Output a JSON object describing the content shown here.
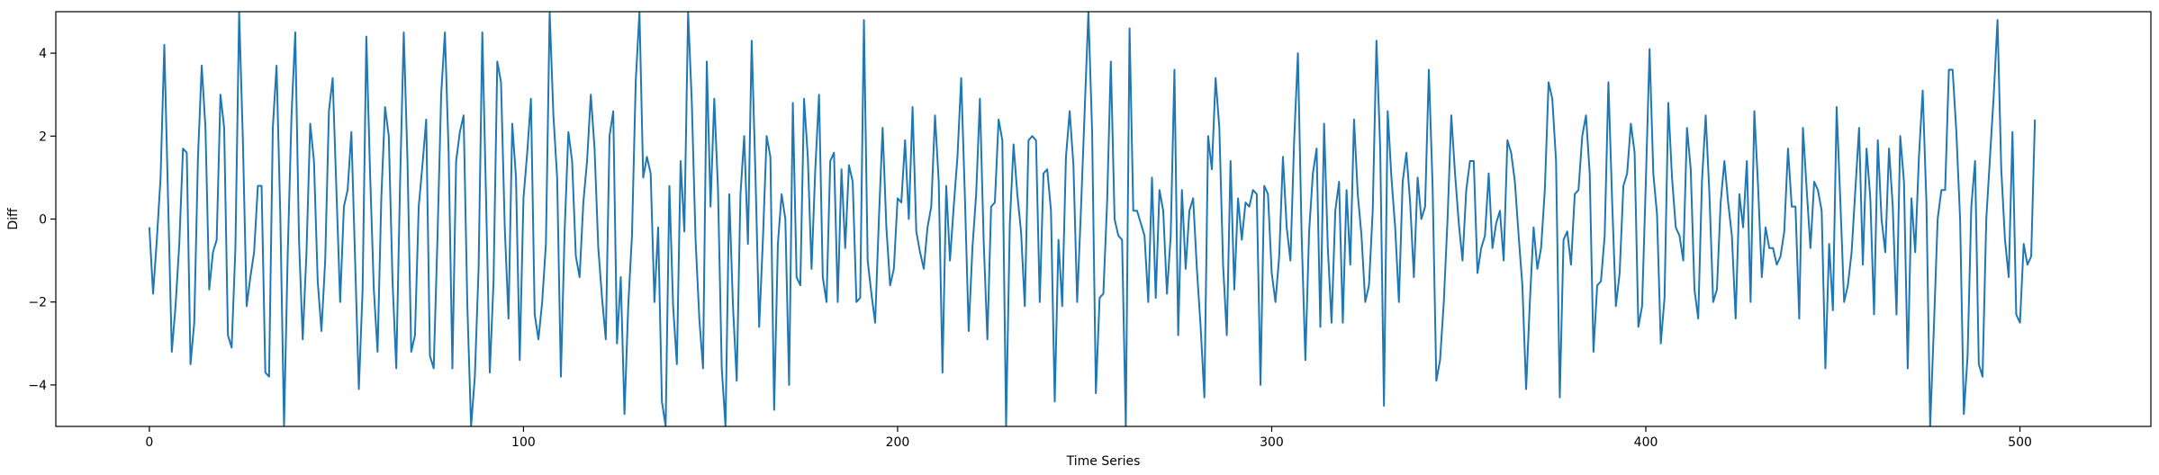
{
  "chart_data": {
    "type": "line",
    "xlabel": "Time Series",
    "ylabel": "Diff",
    "xlim": [
      -25,
      535
    ],
    "ylim": [
      -5,
      5
    ],
    "x_ticks": [
      0,
      100,
      200,
      300,
      400,
      500
    ],
    "y_ticks": [
      -4,
      -2,
      0,
      2,
      4
    ],
    "x_tick_labels": [
      "0",
      "100",
      "200",
      "300",
      "400",
      "500"
    ],
    "y_tick_labels": [
      "−4",
      "−2",
      "0",
      "2",
      "4"
    ],
    "grid": false,
    "legend": "none",
    "series": [
      {
        "color": "#1f77b4",
        "x_start": 0,
        "x_step": 1,
        "values": [
          -0.2,
          -1.8,
          -0.5,
          1.0,
          4.2,
          0.5,
          -3.2,
          -2.1,
          -0.6,
          1.7,
          1.6,
          -3.5,
          -2.5,
          1.5,
          3.7,
          2.2,
          -1.7,
          -0.8,
          -0.5,
          3.0,
          2.2,
          -2.8,
          -3.1,
          -0.7,
          5.0,
          1.9,
          -2.1,
          -1.4,
          -0.8,
          0.8,
          0.8,
          -3.7,
          -3.8,
          2.2,
          3.7,
          0.1,
          -5.0,
          -0.8,
          2.5,
          4.5,
          -0.5,
          -2.9,
          -0.8,
          2.3,
          1.4,
          -1.5,
          -2.7,
          -1.0,
          2.6,
          3.4,
          0.7,
          -2.0,
          0.3,
          0.7,
          2.1,
          -1.0,
          -4.1,
          -1.7,
          4.4,
          1.1,
          -1.7,
          -3.2,
          0.5,
          2.7,
          2.0,
          -1.5,
          -3.6,
          0.8,
          4.5,
          1.4,
          -3.2,
          -2.8,
          0.3,
          1.3,
          2.4,
          -3.3,
          -3.6,
          -0.5,
          3.0,
          4.5,
          1.6,
          -3.6,
          1.4,
          2.1,
          2.5,
          -2.1,
          -5.0,
          -3.8,
          -1.2,
          4.5,
          0.5,
          -3.7,
          -1.5,
          3.8,
          3.3,
          -0.2,
          -2.4,
          2.3,
          1.0,
          -3.4,
          0.5,
          1.6,
          2.9,
          -2.3,
          -2.9,
          -2.0,
          -0.6,
          5.0,
          2.5,
          1.0,
          -3.8,
          -0.3,
          2.1,
          1.4,
          -0.9,
          -1.4,
          0.4,
          1.4,
          3.0,
          1.7,
          -0.7,
          -1.9,
          -2.9,
          2.0,
          2.6,
          -3.0,
          -1.4,
          -4.7,
          -2.1,
          -0.4,
          3.3,
          5.0,
          1.0,
          1.5,
          1.1,
          -2.0,
          -0.2,
          -4.4,
          -5.0,
          0.8,
          -2.1,
          -3.5,
          1.4,
          -0.3,
          5.0,
          2.8,
          -0.5,
          -2.4,
          -3.6,
          3.8,
          0.3,
          2.9,
          0.7,
          -3.6,
          -5.0,
          0.6,
          -2.1,
          -3.9,
          0.6,
          2.0,
          -0.6,
          4.3,
          1.1,
          -2.6,
          -0.5,
          2.0,
          1.5,
          -4.6,
          -0.6,
          0.6,
          0.0,
          -4.0,
          2.8,
          -1.4,
          -1.6,
          2.9,
          1.5,
          -1.2,
          1.2,
          3.0,
          -1.4,
          -2.0,
          1.4,
          1.6,
          -2.0,
          1.2,
          -0.7,
          1.3,
          0.9,
          -2.0,
          -1.9,
          4.8,
          -1.0,
          -1.8,
          -2.5,
          0.0,
          2.2,
          -0.2,
          -1.6,
          -1.2,
          0.5,
          0.4,
          1.9,
          0.0,
          2.7,
          -0.3,
          -0.8,
          -1.2,
          -0.2,
          0.3,
          2.5,
          0.9,
          -3.7,
          0.8,
          -1.0,
          0.3,
          1.5,
          3.4,
          0.5,
          -2.7,
          -0.7,
          0.6,
          2.9,
          -0.5,
          -2.9,
          0.3,
          0.4,
          2.4,
          1.9,
          -5.0,
          -0.1,
          1.8,
          0.6,
          -0.3,
          -2.1,
          1.9,
          2.0,
          1.9,
          -2.0,
          1.1,
          1.2,
          0.2,
          -4.4,
          -0.5,
          -2.1,
          1.5,
          2.6,
          1.3,
          -2.0,
          0.2,
          2.6,
          5.0,
          2.1,
          -4.2,
          -1.9,
          -1.8,
          0.4,
          3.8,
          0.0,
          -0.4,
          -0.5,
          -5.0,
          4.6,
          0.2,
          0.2,
          -0.1,
          -0.4,
          -2.0,
          1.0,
          -1.9,
          0.7,
          0.2,
          -1.8,
          -0.4,
          3.6,
          -2.8,
          0.7,
          -1.2,
          0.2,
          0.5,
          -1.2,
          -2.6,
          -4.3,
          2.0,
          1.2,
          3.4,
          2.2,
          -1.1,
          -2.8,
          1.4,
          -1.7,
          0.5,
          -0.5,
          0.4,
          0.3,
          0.7,
          0.6,
          -4.0,
          0.8,
          0.6,
          -1.3,
          -2.0,
          -0.9,
          1.5,
          -0.2,
          -1.0,
          1.9,
          4.0,
          -0.4,
          -3.4,
          -0.3,
          1.1,
          1.7,
          -2.6,
          2.3,
          -0.7,
          -2.5,
          0.2,
          0.9,
          -2.5,
          0.7,
          -1.1,
          2.4,
          0.6,
          -0.4,
          -2.0,
          -1.6,
          0.2,
          4.3,
          1.7,
          -4.5,
          2.6,
          1.0,
          -0.2,
          -2.0,
          0.9,
          1.6,
          0.4,
          -1.4,
          1.0,
          0.0,
          0.3,
          3.6,
          0.8,
          -3.9,
          -3.4,
          -2.0,
          0.0,
          2.5,
          1.1,
          -0.1,
          -1.0,
          0.7,
          1.4,
          1.4,
          -1.3,
          -0.7,
          -0.4,
          1.1,
          -0.7,
          -0.1,
          0.2,
          -1.0,
          1.9,
          1.6,
          0.9,
          -0.4,
          -1.6,
          -4.1,
          -2.0,
          -0.2,
          -1.2,
          -0.7,
          0.7,
          3.3,
          2.9,
          1.4,
          -4.3,
          -0.5,
          -0.3,
          -1.1,
          0.6,
          0.7,
          2.0,
          2.5,
          1.1,
          -3.2,
          -1.6,
          -1.5,
          -0.4,
          3.3,
          0.4,
          -2.1,
          -1.3,
          0.8,
          1.1,
          2.3,
          1.6,
          -2.6,
          -2.1,
          0.9,
          4.1,
          1.1,
          0.1,
          -3.0,
          -1.9,
          2.8,
          1.0,
          -0.2,
          -0.4,
          -1.0,
          2.2,
          1.2,
          -1.7,
          -2.4,
          0.9,
          2.5,
          0.6,
          -2.0,
          -1.7,
          0.4,
          1.4,
          0.4,
          -0.4,
          -2.4,
          0.6,
          -0.2,
          1.4,
          -2.0,
          2.6,
          0.8,
          -1.4,
          -0.2,
          -0.7,
          -0.7,
          -1.1,
          -0.9,
          -0.3,
          1.7,
          0.3,
          0.3,
          -2.4,
          2.2,
          0.7,
          -0.7,
          0.9,
          0.7,
          0.2,
          -3.6,
          -0.6,
          -2.2,
          2.7,
          0.4,
          -2.0,
          -1.6,
          -0.8,
          0.7,
          2.2,
          -1.1,
          1.7,
          0.5,
          -2.3,
          1.9,
          0.0,
          -0.8,
          1.7,
          0.3,
          -2.3,
          2.0,
          0.9,
          -3.6,
          0.5,
          -0.8,
          1.5,
          3.1,
          0.4,
          -5.0,
          -2.6,
          0.0,
          0.7,
          0.7,
          3.6,
          3.6,
          2.1,
          0.0,
          -4.7,
          -3.3,
          0.3,
          1.4,
          -3.5,
          -3.8,
          0.0,
          1.5,
          3.0,
          4.8,
          1.2,
          -0.5,
          -1.4,
          2.1,
          -2.3,
          -2.5,
          -0.6,
          -1.1,
          -0.9,
          2.4
        ]
      }
    ]
  }
}
